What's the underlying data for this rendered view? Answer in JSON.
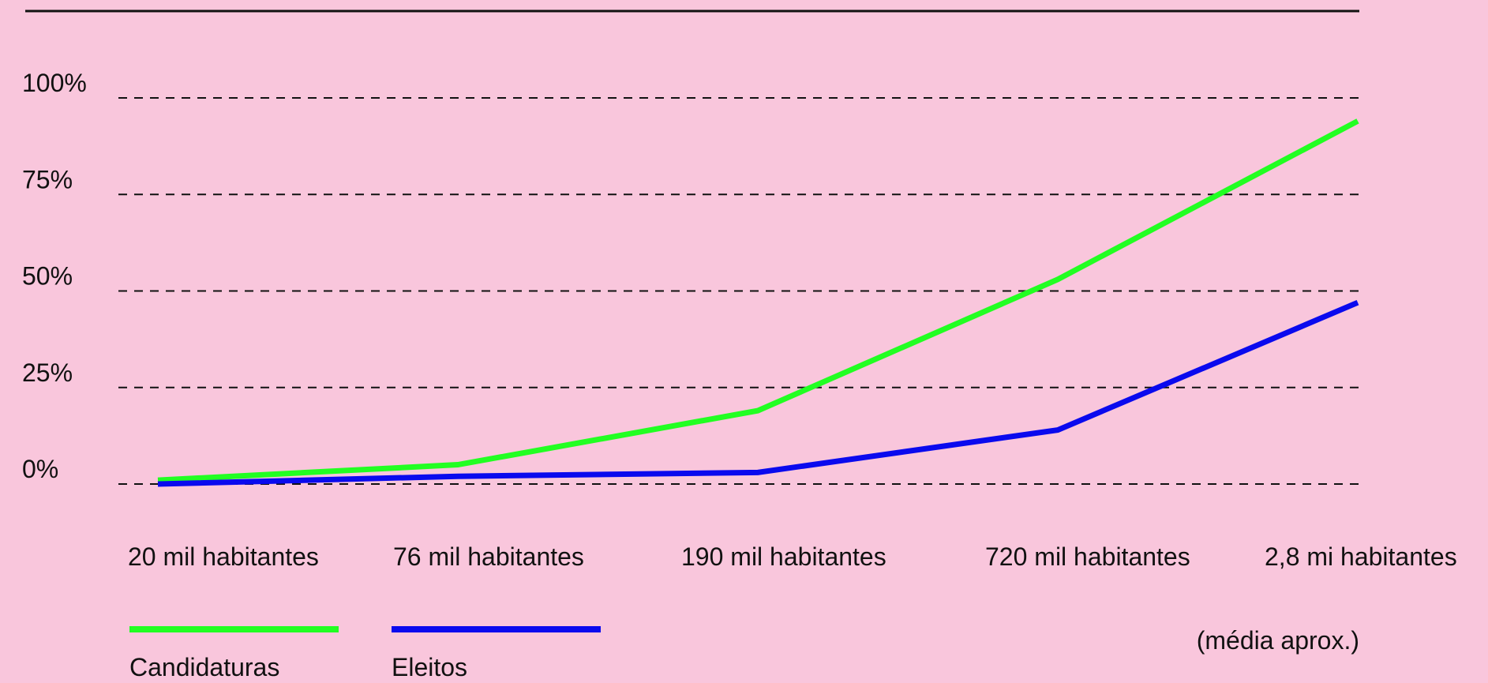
{
  "chart_data": {
    "type": "line",
    "categories": [
      "20 mil habitantes",
      "76 mil habitantes",
      "190 mil habitantes",
      "720 mil habitantes",
      "2,8 mi habitantes"
    ],
    "series": [
      {
        "name": "Candidaturas",
        "color": "#22ff22",
        "values": [
          1,
          5,
          19,
          53,
          94
        ]
      },
      {
        "name": "Eleitos",
        "color": "#0a0aee",
        "values": [
          0,
          2,
          3,
          14,
          47
        ]
      }
    ],
    "y_ticks": [
      "0%",
      "25%",
      "50%",
      "75%",
      "100%"
    ],
    "y_tick_values": [
      0,
      25,
      50,
      75,
      100
    ],
    "ylim": [
      0,
      100
    ],
    "grid": true,
    "grid_style": "dashed",
    "legend_position": "bottom-left",
    "note": "(média aprox.)"
  }
}
